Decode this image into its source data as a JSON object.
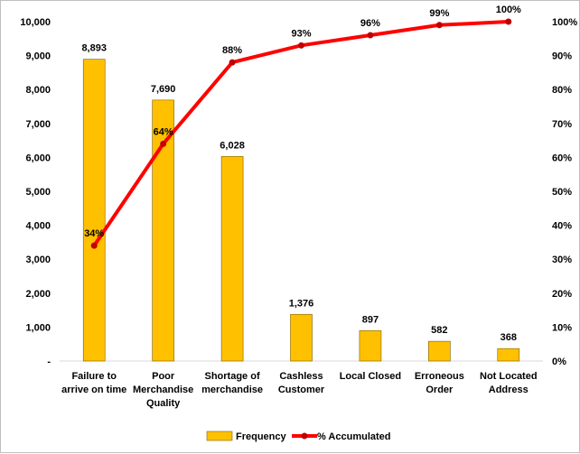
{
  "chart_data": {
    "type": "bar",
    "categories": [
      [
        "Failure to",
        "arrive on time"
      ],
      [
        "Poor",
        "Merchandise",
        "Quality"
      ],
      [
        "Shortage of",
        "merchandise"
      ],
      [
        "Cashless",
        "Customer"
      ],
      [
        "Local Closed"
      ],
      [
        "Erroneous",
        "Order"
      ],
      [
        "Not Located",
        "Address"
      ]
    ],
    "series": [
      {
        "name": "Frequency",
        "type": "bar",
        "axis": "left",
        "values": [
          8893,
          7690,
          6028,
          1376,
          897,
          582,
          368
        ],
        "labels": [
          "8,893",
          "7,690",
          "6,028",
          "1,376",
          "897",
          "582",
          "368"
        ],
        "color": "#FFC000"
      },
      {
        "name": "% Accumulated",
        "type": "line",
        "axis": "right",
        "values": [
          34,
          64,
          88,
          93,
          96,
          99,
          100
        ],
        "labels": [
          "34%",
          "64%",
          "88%",
          "93%",
          "96%",
          "99%",
          "100%"
        ],
        "color": "#FF0000",
        "marker_color": "#C00000"
      }
    ],
    "y_left": {
      "ylim": [
        0,
        10000
      ],
      "ticks": [
        "-",
        "1,000",
        "2,000",
        "3,000",
        "4,000",
        "5,000",
        "6,000",
        "7,000",
        "8,000",
        "9,000",
        "10,000"
      ]
    },
    "y_right": {
      "ylim": [
        0,
        100
      ],
      "ticks": [
        "0%",
        "10%",
        "20%",
        "30%",
        "40%",
        "50%",
        "60%",
        "70%",
        "80%",
        "90%",
        "100%"
      ]
    },
    "grid": false,
    "legend": {
      "position": "bottom",
      "entries": [
        "Frequency",
        "% Accumulated"
      ]
    }
  }
}
